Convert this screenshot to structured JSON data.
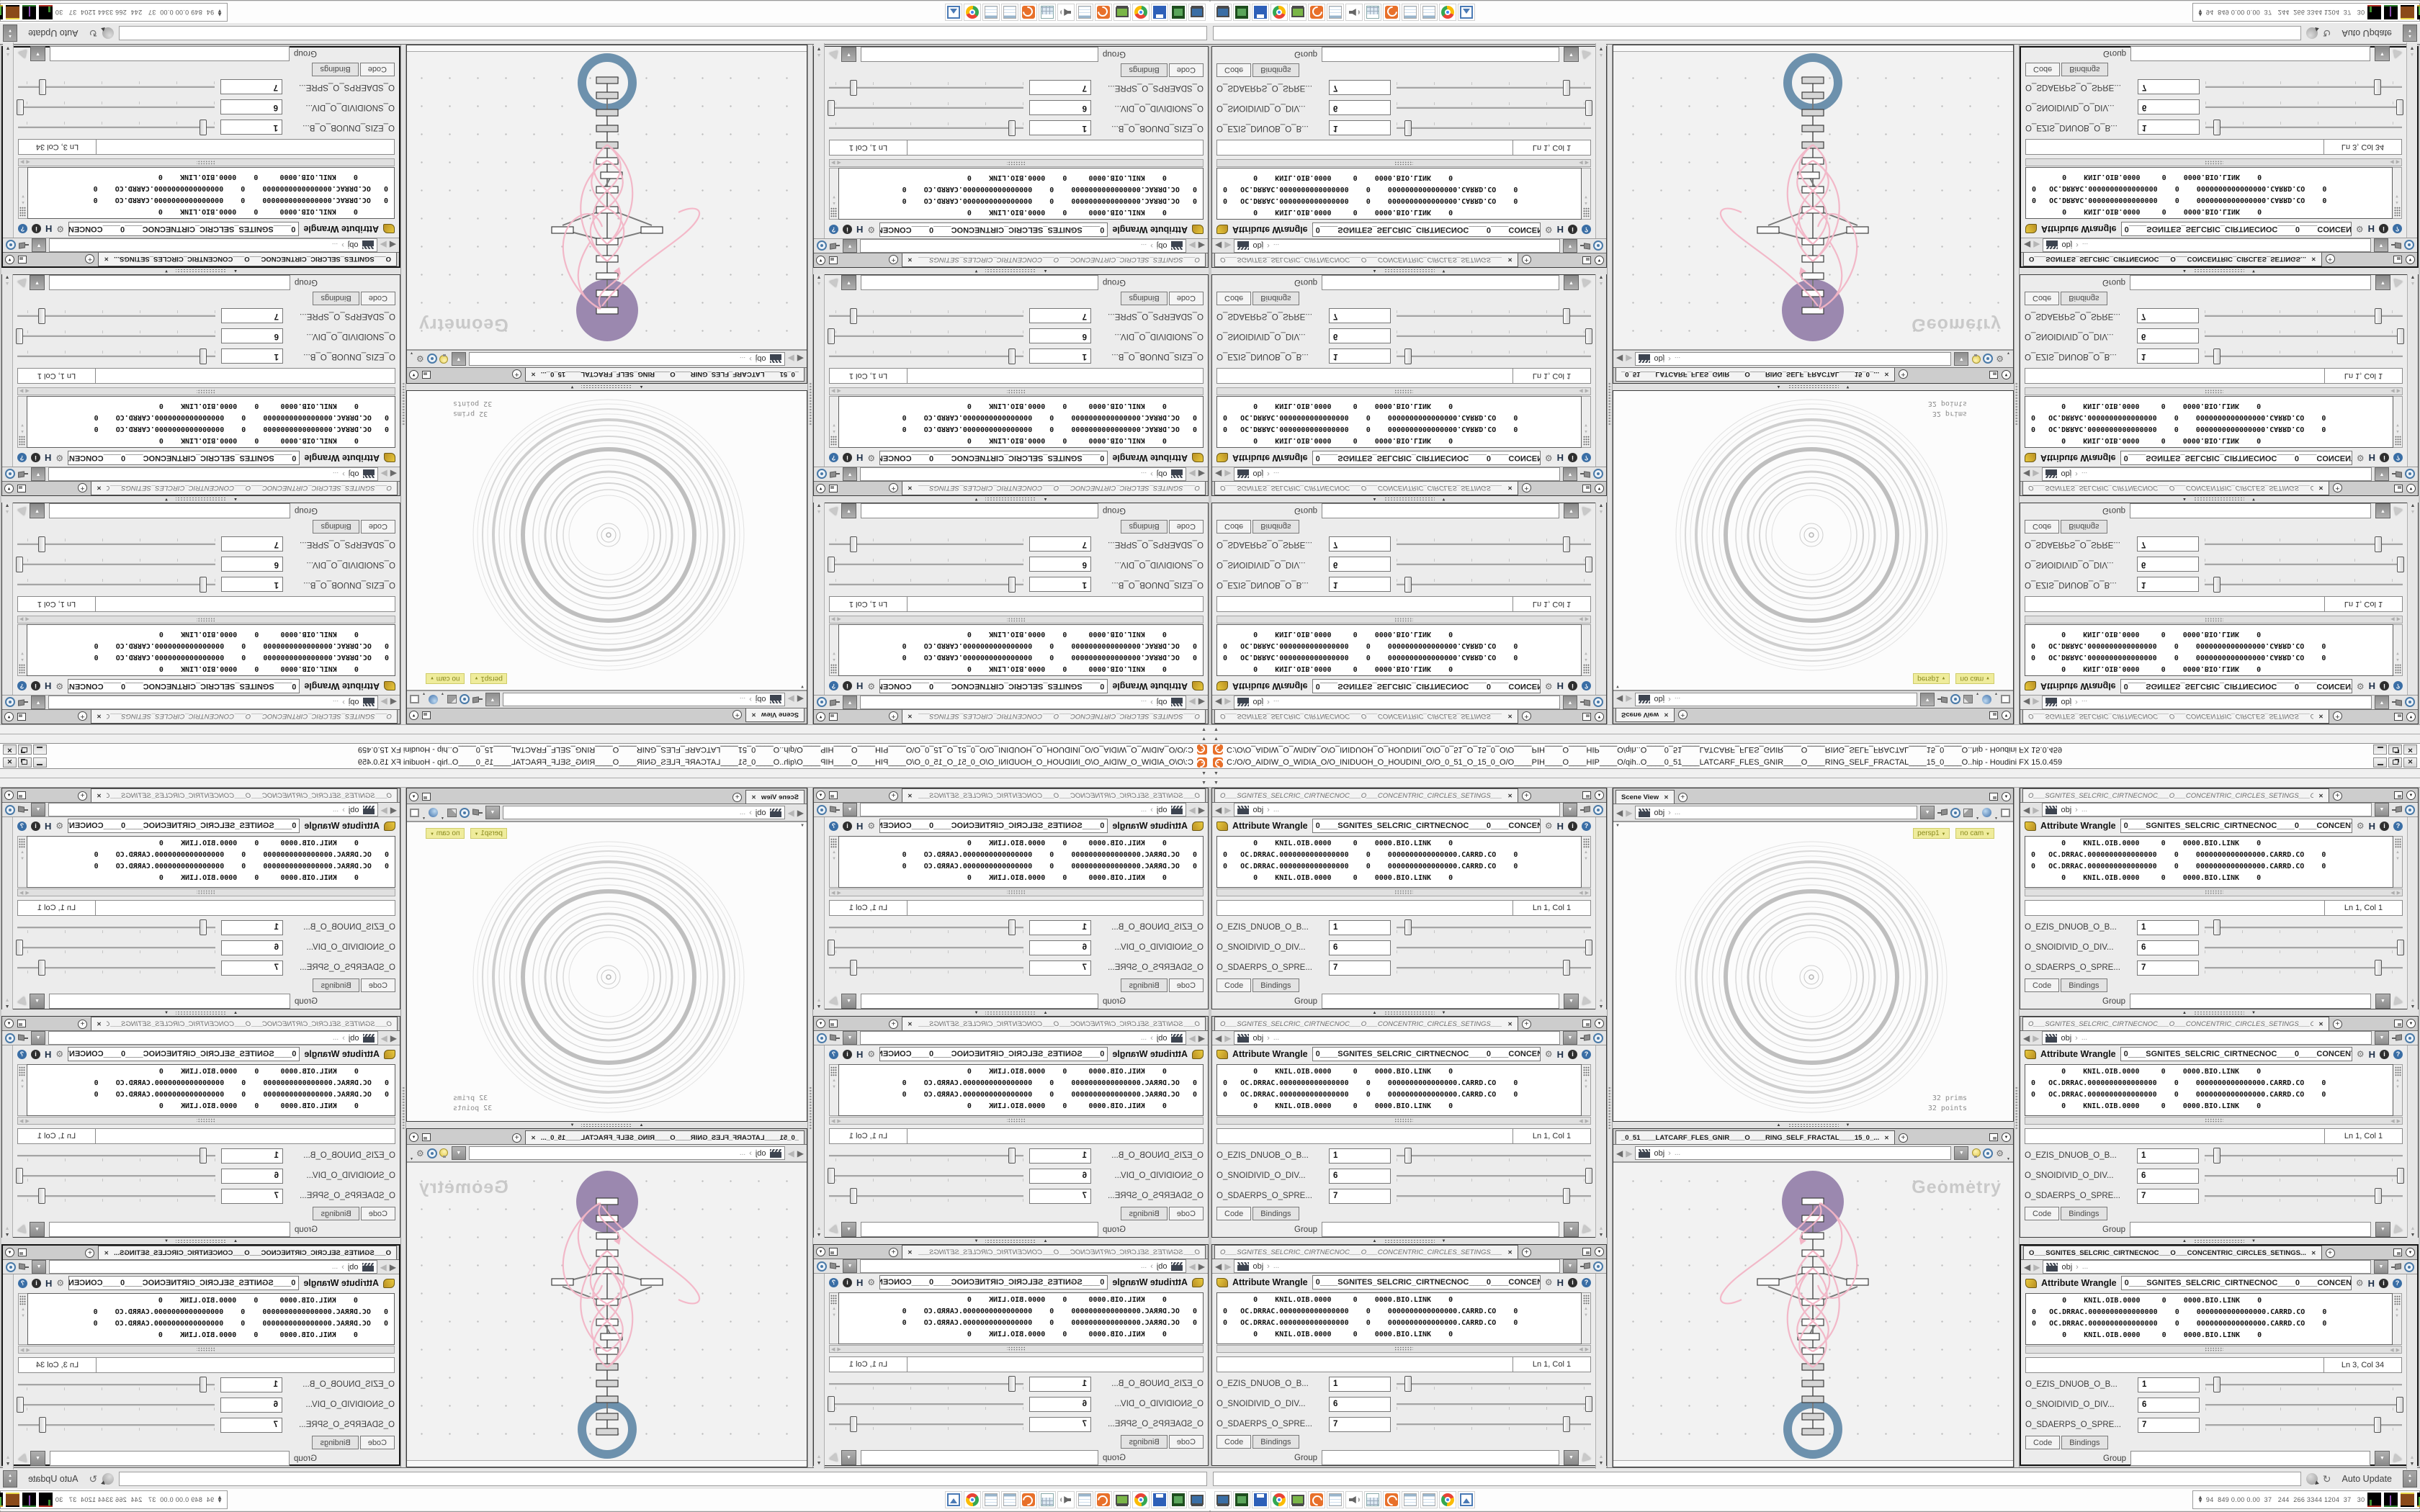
{
  "window": {
    "title": "C:/O/O_AIDIW_O_WIDIA_O/O_INIDUOH_O_HOUDINI_O/O_0_51_O_15_0_O/O____PIH____O____HIP____O/qih..O____0_51____LATCARF_FLES_GNIR____O____RING_SELF_FRACTAL____15_0____O..hip - Houdini FX 15.0.459",
    "controls": {
      "minimize": "minimize",
      "restore": "restore",
      "close": "✕"
    }
  },
  "pane": {
    "tab_label_inactive": "O___SGNITES_SELCRIC_CIRTNECNOC___O___CONCENTRIC_CIRCLES_SETINGS___O",
    "tab_label_active": "O___SGNITES_SELCRIC_CIRTNECNOC___O___CONCENTRIC_CIRCLES_SETINGS...",
    "close_glyph": "✕",
    "new_tab_glyph": "+",
    "node_type": "Attribute Wrangle",
    "node_name": "0____SGNITES_SELCRIC_CIRTNECNOC____0____CONCENT",
    "h_icon": "H",
    "info_icon": "i",
    "help_icon": "?",
    "gear_icon": "⚙",
    "code_lines": [
      "        0    KNIL.OIB.0000     0    0000.BIO.LINK    0",
      " 0   OC.DRRAC.0000000000000000    0    0000000000000000.CARRD.CO    0",
      " 0   OC.DRRAC.0000000000000000    0    0000000000000000.CARRD.CO    0",
      "        0    KNIL.OIB.0000     0    0000.BIO.LINK    0"
    ],
    "params": [
      {
        "label": "O_EZIS_DNUOB_O_B...",
        "value": "1"
      },
      {
        "label": "O_SNOIDIVID_O_DIV...",
        "value": "6"
      },
      {
        "label": "O_SDAERPS_O_SPRE...",
        "value": "7"
      }
    ],
    "code_tab": "Code",
    "bindings_tab": "Bindings",
    "group_label": "Group"
  },
  "path": {
    "root": "obj",
    "separator": "›",
    "ellipsis": "..."
  },
  "columns": {
    "left": [
      {
        "ln_col": "Ln 1, Col 1"
      },
      {
        "ln_col": "Ln 1, Col 1"
      },
      {
        "ln_col": "Ln 1, Col 1"
      }
    ],
    "right": [
      {
        "ln_col": "Ln 1, Col 1"
      },
      {
        "ln_col": "Ln 1, Col 1"
      },
      {
        "ln_col": "Ln 3, Col 34",
        "active": true
      }
    ]
  },
  "scene_view": {
    "tab": "Scene View",
    "camera_label": "persp1",
    "no_cam_label": "no cam",
    "stats_prims": "32 prims",
    "stats_points": "32 points"
  },
  "network": {
    "tab": "_0_51____LATCARF_FLES_GNIR____O____RING_SELF_FRACTAL____15_0_...",
    "watermark": "Geometry"
  },
  "statusbar": {
    "auto_update": "Auto Update"
  },
  "perf": {
    "values": "94  849 0.00 0.00  37   244  266 3344 1204  37   30"
  },
  "taskbar": {
    "icons": [
      "monitor",
      "drive",
      "floppy",
      "chrome",
      "screen",
      "houdini",
      "note",
      "speaker",
      "calc",
      "houdini",
      "note",
      "note",
      "chrome",
      "frame"
    ]
  },
  "colors": {
    "accent_orange": "#e8702a",
    "node_purple": "#9b88af",
    "node_ring_blue": "#6d91ad",
    "wire_pink": "#f3b5c6",
    "cam_label_bg": "#efec9c"
  }
}
